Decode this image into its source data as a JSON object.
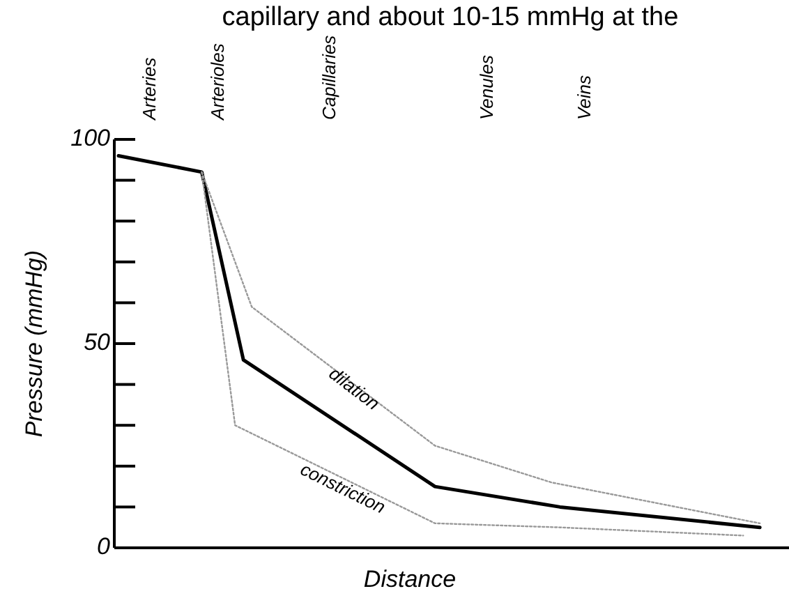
{
  "chart_data": {
    "type": "line",
    "title": "capillary and about 10-15 mmHg at the",
    "xlabel": "Distance",
    "ylabel": "Pressure (mmHg)",
    "annotations": [
      "Arteries",
      "Arterioles",
      "Capillaries",
      "Venules",
      "Veins"
    ],
    "categories": [
      null,
      null,
      null,
      null,
      null,
      null,
      null,
      null,
      null,
      null,
      null,
      null,
      null,
      null,
      null,
      null,
      null,
      null,
      null,
      null,
      null,
      null,
      null,
      null,
      null,
      null,
      null,
      null,
      null,
      null,
      null,
      null,
      null,
      null,
      null,
      null,
      null,
      null,
      null,
      null,
      null,
      null,
      null,
      null,
      null,
      null,
      null,
      null,
      null,
      null,
      null,
      null,
      null,
      null,
      null,
      null,
      null,
      null,
      null,
      null,
      null,
      null,
      null,
      null,
      null,
      null,
      null,
      null,
      null,
      null,
      null,
      null,
      null,
      null,
      null,
      null,
      null,
      null,
      null,
      null,
      null
    ],
    "ylim": [
      0,
      100
    ],
    "yticks": [
      0,
      {
        "value": 10,
        "label": null
      },
      {
        "value": 20,
        "label": null
      },
      {
        "value": 30,
        "label": null
      },
      {
        "value": 40,
        "label": null
      },
      50,
      {
        "value": 60,
        "label": null
      },
      {
        "value": 70,
        "label": null
      },
      {
        "value": 80,
        "label": null
      },
      {
        "value": 90,
        "label": null
      },
      100
    ],
    "tick_labels": "y",
    "legend": false,
    "marker": "none",
    "series": [
      {
        "color": "#000000",
        "line_style": "solid",
        "values": [
          96,
          null,
          null,
          null,
          null,
          null,
          null,
          null,
          null,
          null,
          92,
          null,
          null,
          null,
          null,
          46,
          null,
          null,
          null,
          null,
          null,
          null,
          null,
          null,
          null,
          null,
          null,
          null,
          null,
          null,
          null,
          null,
          null,
          null,
          null,
          null,
          null,
          null,
          15,
          null,
          null,
          null,
          null,
          null,
          null,
          null,
          null,
          null,
          null,
          null,
          null,
          null,
          null,
          10,
          null,
          null,
          null,
          null,
          null,
          null,
          null,
          null,
          null,
          null,
          null,
          null,
          null,
          null,
          null,
          null,
          null,
          null,
          null,
          null,
          null,
          null,
          null,
          5,
          null,
          null,
          null
        ]
      },
      {
        "name": "dilation",
        "color": "#999999",
        "line_style": "dotted",
        "values": [
          null,
          null,
          null,
          null,
          null,
          null,
          null,
          null,
          null,
          null,
          92,
          null,
          null,
          null,
          null,
          null,
          59,
          null,
          null,
          null,
          null,
          null,
          null,
          null,
          null,
          null,
          null,
          null,
          null,
          null,
          null,
          null,
          null,
          null,
          null,
          null,
          null,
          null,
          25,
          null,
          null,
          null,
          null,
          null,
          null,
          null,
          null,
          null,
          null,
          null,
          null,
          null,
          16,
          null,
          null,
          null,
          null,
          null,
          null,
          null,
          null,
          null,
          null,
          null,
          null,
          null,
          null,
          null,
          null,
          null,
          null,
          null,
          null,
          null,
          null,
          null,
          null,
          6,
          null,
          null,
          null
        ]
      },
      {
        "name": "constriction",
        "color": "#999999",
        "line_style": "dotted",
        "values": [
          null,
          null,
          null,
          null,
          null,
          null,
          null,
          null,
          null,
          null,
          92,
          null,
          null,
          null,
          30,
          null,
          null,
          null,
          null,
          null,
          null,
          null,
          null,
          null,
          null,
          null,
          null,
          null,
          null,
          null,
          null,
          null,
          null,
          null,
          null,
          null,
          null,
          null,
          6,
          null,
          null,
          null,
          null,
          null,
          null,
          null,
          null,
          null,
          null,
          null,
          null,
          null,
          null,
          5,
          null,
          null,
          null,
          null,
          null,
          null,
          null,
          null,
          null,
          null,
          null,
          null,
          null,
          null,
          null,
          null,
          null,
          null,
          null,
          null,
          null,
          3,
          null,
          null,
          null,
          null,
          null
        ]
      }
    ]
  }
}
